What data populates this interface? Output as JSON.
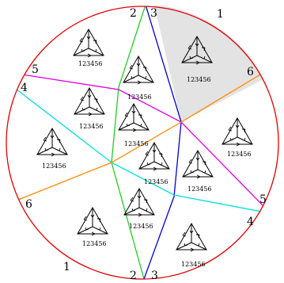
{
  "boundary_labels": [
    {
      "id": "top-left-2",
      "text": "2"
    },
    {
      "id": "top-3",
      "text": "3"
    },
    {
      "id": "top-right-1",
      "text": "1"
    },
    {
      "id": "right-6",
      "text": "6"
    },
    {
      "id": "left-5",
      "text": "5"
    },
    {
      "id": "left-4",
      "text": "4"
    },
    {
      "id": "left-6",
      "text": "6"
    },
    {
      "id": "right-5",
      "text": "5"
    },
    {
      "id": "right-4",
      "text": "4"
    },
    {
      "id": "bottom-left-1",
      "text": "1"
    },
    {
      "id": "bottom-2",
      "text": "2"
    },
    {
      "id": "bottom-3",
      "text": "3"
    }
  ],
  "tiles": [
    {
      "id": "tile-a",
      "label": "123456"
    },
    {
      "id": "tile-b",
      "label": "123456"
    },
    {
      "id": "tile-c",
      "label": "123456"
    },
    {
      "id": "tile-d",
      "label": "123456"
    },
    {
      "id": "tile-e",
      "label": "123456"
    },
    {
      "id": "tile-f",
      "label": "123456"
    },
    {
      "id": "tile-g",
      "label": "123456"
    },
    {
      "id": "tile-h",
      "label": "123456"
    },
    {
      "id": "tile-i",
      "label": "123456"
    },
    {
      "id": "tile-j",
      "label": "123456"
    },
    {
      "id": "tile-k",
      "label": "123456"
    },
    {
      "id": "tile-l",
      "label": "123456"
    },
    {
      "id": "tile-m",
      "label": "123456"
    }
  ],
  "colors": {
    "circle": "#e00000",
    "line_2": "#22cc22",
    "line_3": "#0000cc",
    "line_5": "#e000e0",
    "line_4": "#00dddd",
    "line_6": "#ff8800",
    "shaded_region": "#e3e3e3",
    "glyph": "#000000"
  }
}
